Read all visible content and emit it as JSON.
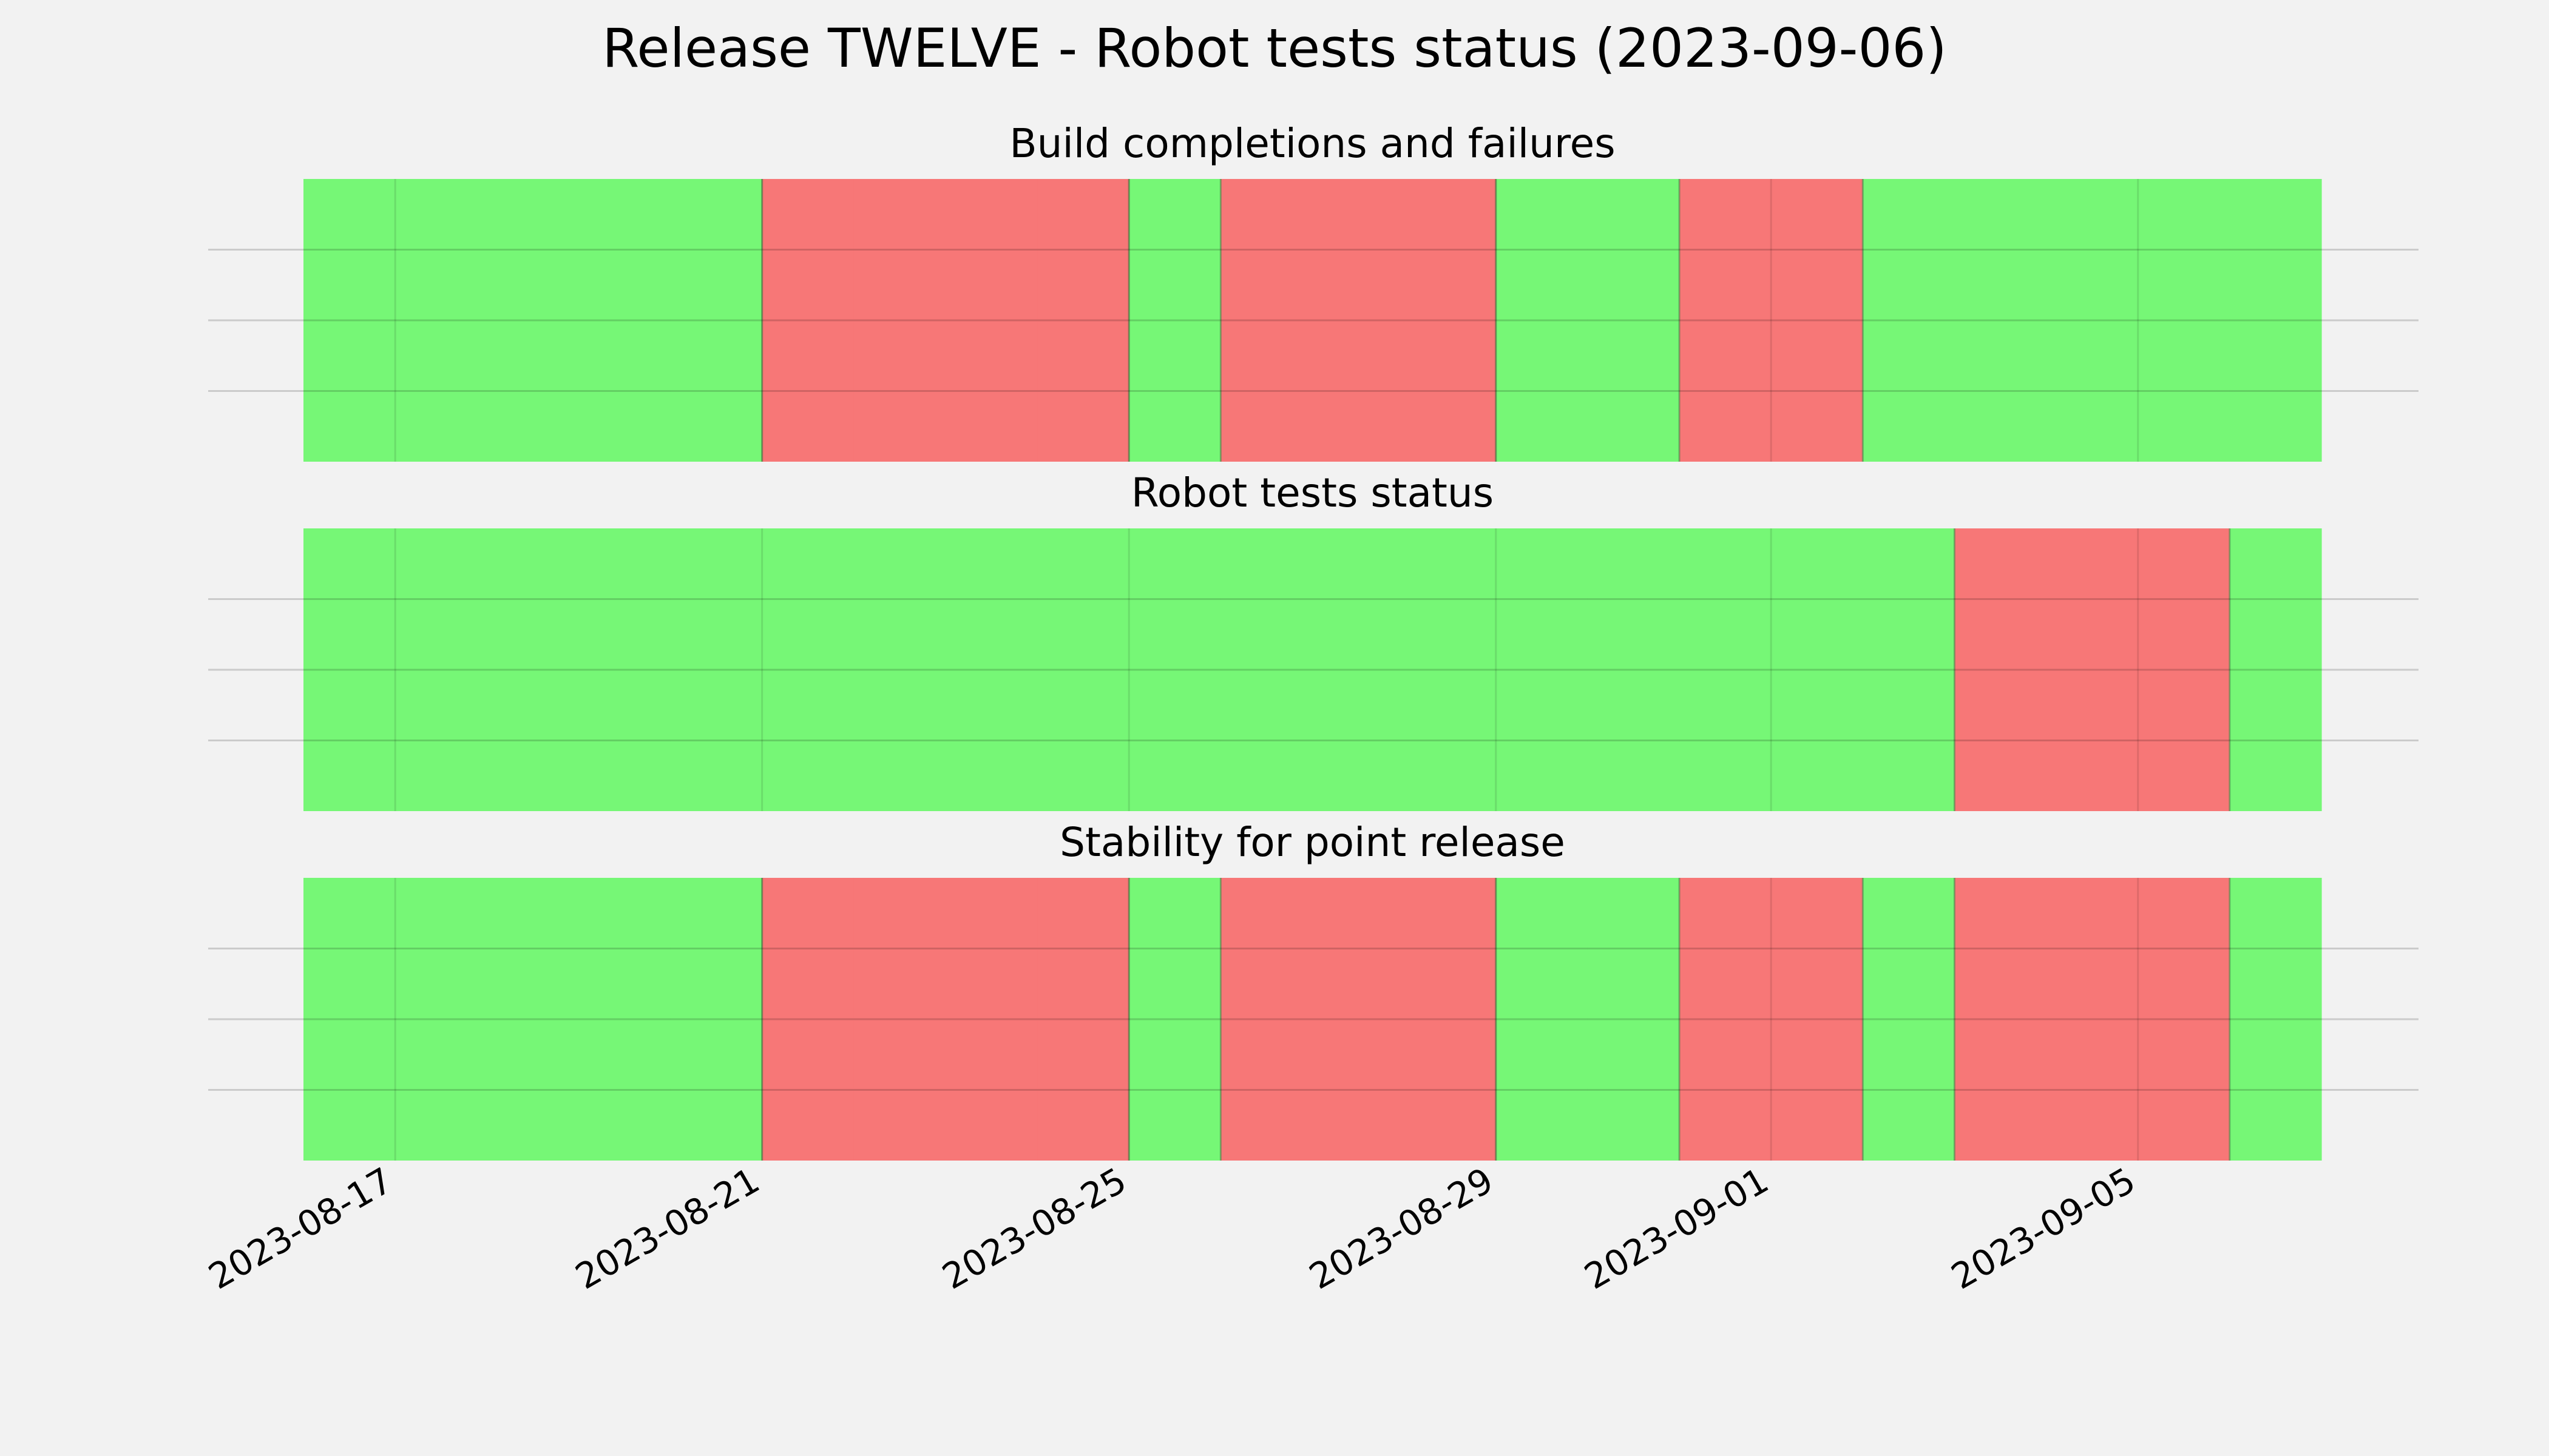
{
  "title": "Release TWELVE - Robot tests status (2023-09-06)",
  "chart_data": {
    "type": "timeline",
    "title": "Release TWELVE - Robot tests status (2023-09-06)",
    "x_range": [
      "2023-08-16",
      "2023-09-07"
    ],
    "x_ticks": [
      "2023-08-17",
      "2023-08-21",
      "2023-08-25",
      "2023-08-29",
      "2023-09-01",
      "2023-09-05"
    ],
    "grid": true,
    "colors": {
      "pass": "#76f776",
      "fail": "#f77777",
      "background": "#f2f2f2"
    },
    "panels": [
      {
        "title": "Build completions and failures",
        "days": [
          {
            "date": "2023-08-16",
            "status": "pass"
          },
          {
            "date": "2023-08-17",
            "status": "pass"
          },
          {
            "date": "2023-08-18",
            "status": "pass"
          },
          {
            "date": "2023-08-19",
            "status": "pass"
          },
          {
            "date": "2023-08-20",
            "status": "pass"
          },
          {
            "date": "2023-08-21",
            "status": "fail"
          },
          {
            "date": "2023-08-22",
            "status": "fail"
          },
          {
            "date": "2023-08-23",
            "status": "fail"
          },
          {
            "date": "2023-08-24",
            "status": "fail"
          },
          {
            "date": "2023-08-25",
            "status": "pass"
          },
          {
            "date": "2023-08-26",
            "status": "fail"
          },
          {
            "date": "2023-08-27",
            "status": "fail"
          },
          {
            "date": "2023-08-28",
            "status": "fail"
          },
          {
            "date": "2023-08-29",
            "status": "pass"
          },
          {
            "date": "2023-08-30",
            "status": "pass"
          },
          {
            "date": "2023-08-31",
            "status": "fail"
          },
          {
            "date": "2023-09-01",
            "status": "fail"
          },
          {
            "date": "2023-09-02",
            "status": "pass"
          },
          {
            "date": "2023-09-03",
            "status": "pass"
          },
          {
            "date": "2023-09-04",
            "status": "pass"
          },
          {
            "date": "2023-09-05",
            "status": "pass"
          },
          {
            "date": "2023-09-06",
            "status": "pass"
          }
        ]
      },
      {
        "title": "Robot tests status",
        "days": [
          {
            "date": "2023-08-16",
            "status": "pass"
          },
          {
            "date": "2023-08-17",
            "status": "pass"
          },
          {
            "date": "2023-08-18",
            "status": "pass"
          },
          {
            "date": "2023-08-19",
            "status": "pass"
          },
          {
            "date": "2023-08-20",
            "status": "pass"
          },
          {
            "date": "2023-08-21",
            "status": "pass"
          },
          {
            "date": "2023-08-22",
            "status": "pass"
          },
          {
            "date": "2023-08-23",
            "status": "pass"
          },
          {
            "date": "2023-08-24",
            "status": "pass"
          },
          {
            "date": "2023-08-25",
            "status": "pass"
          },
          {
            "date": "2023-08-26",
            "status": "pass"
          },
          {
            "date": "2023-08-27",
            "status": "pass"
          },
          {
            "date": "2023-08-28",
            "status": "pass"
          },
          {
            "date": "2023-08-29",
            "status": "pass"
          },
          {
            "date": "2023-08-30",
            "status": "pass"
          },
          {
            "date": "2023-08-31",
            "status": "pass"
          },
          {
            "date": "2023-09-01",
            "status": "pass"
          },
          {
            "date": "2023-09-02",
            "status": "pass"
          },
          {
            "date": "2023-09-03",
            "status": "fail"
          },
          {
            "date": "2023-09-04",
            "status": "fail"
          },
          {
            "date": "2023-09-05",
            "status": "fail"
          },
          {
            "date": "2023-09-06",
            "status": "pass"
          }
        ]
      },
      {
        "title": "Stability for point release",
        "days": [
          {
            "date": "2023-08-16",
            "status": "pass"
          },
          {
            "date": "2023-08-17",
            "status": "pass"
          },
          {
            "date": "2023-08-18",
            "status": "pass"
          },
          {
            "date": "2023-08-19",
            "status": "pass"
          },
          {
            "date": "2023-08-20",
            "status": "pass"
          },
          {
            "date": "2023-08-21",
            "status": "fail"
          },
          {
            "date": "2023-08-22",
            "status": "fail"
          },
          {
            "date": "2023-08-23",
            "status": "fail"
          },
          {
            "date": "2023-08-24",
            "status": "fail"
          },
          {
            "date": "2023-08-25",
            "status": "pass"
          },
          {
            "date": "2023-08-26",
            "status": "fail"
          },
          {
            "date": "2023-08-27",
            "status": "fail"
          },
          {
            "date": "2023-08-28",
            "status": "fail"
          },
          {
            "date": "2023-08-29",
            "status": "pass"
          },
          {
            "date": "2023-08-30",
            "status": "pass"
          },
          {
            "date": "2023-08-31",
            "status": "fail"
          },
          {
            "date": "2023-09-01",
            "status": "fail"
          },
          {
            "date": "2023-09-02",
            "status": "pass"
          },
          {
            "date": "2023-09-03",
            "status": "fail"
          },
          {
            "date": "2023-09-04",
            "status": "fail"
          },
          {
            "date": "2023-09-05",
            "status": "fail"
          },
          {
            "date": "2023-09-06",
            "status": "pass"
          }
        ]
      }
    ]
  }
}
